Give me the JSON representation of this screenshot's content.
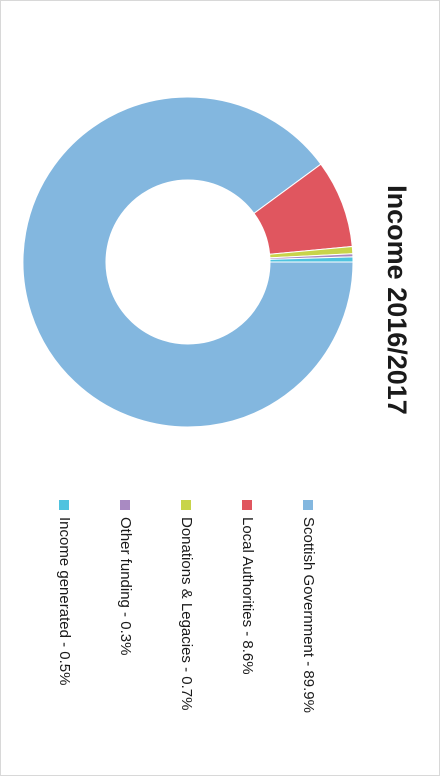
{
  "chart_data": {
    "type": "donut",
    "title": "Income 2016/2017",
    "values": [
      89.9,
      8.6,
      0.7,
      0.3,
      0.5
    ],
    "value_labels": [
      "Scottish Government - 89.9%",
      "Local Authorities - 8.6%",
      "Donations & Legacies - 0.7%",
      "Other funding - 0.3%",
      "Income generated - 0.5%"
    ],
    "colors": [
      "#83b7df",
      "#e0565f",
      "#c8d44a",
      "#a98ac2",
      "#4fc3df"
    ]
  }
}
